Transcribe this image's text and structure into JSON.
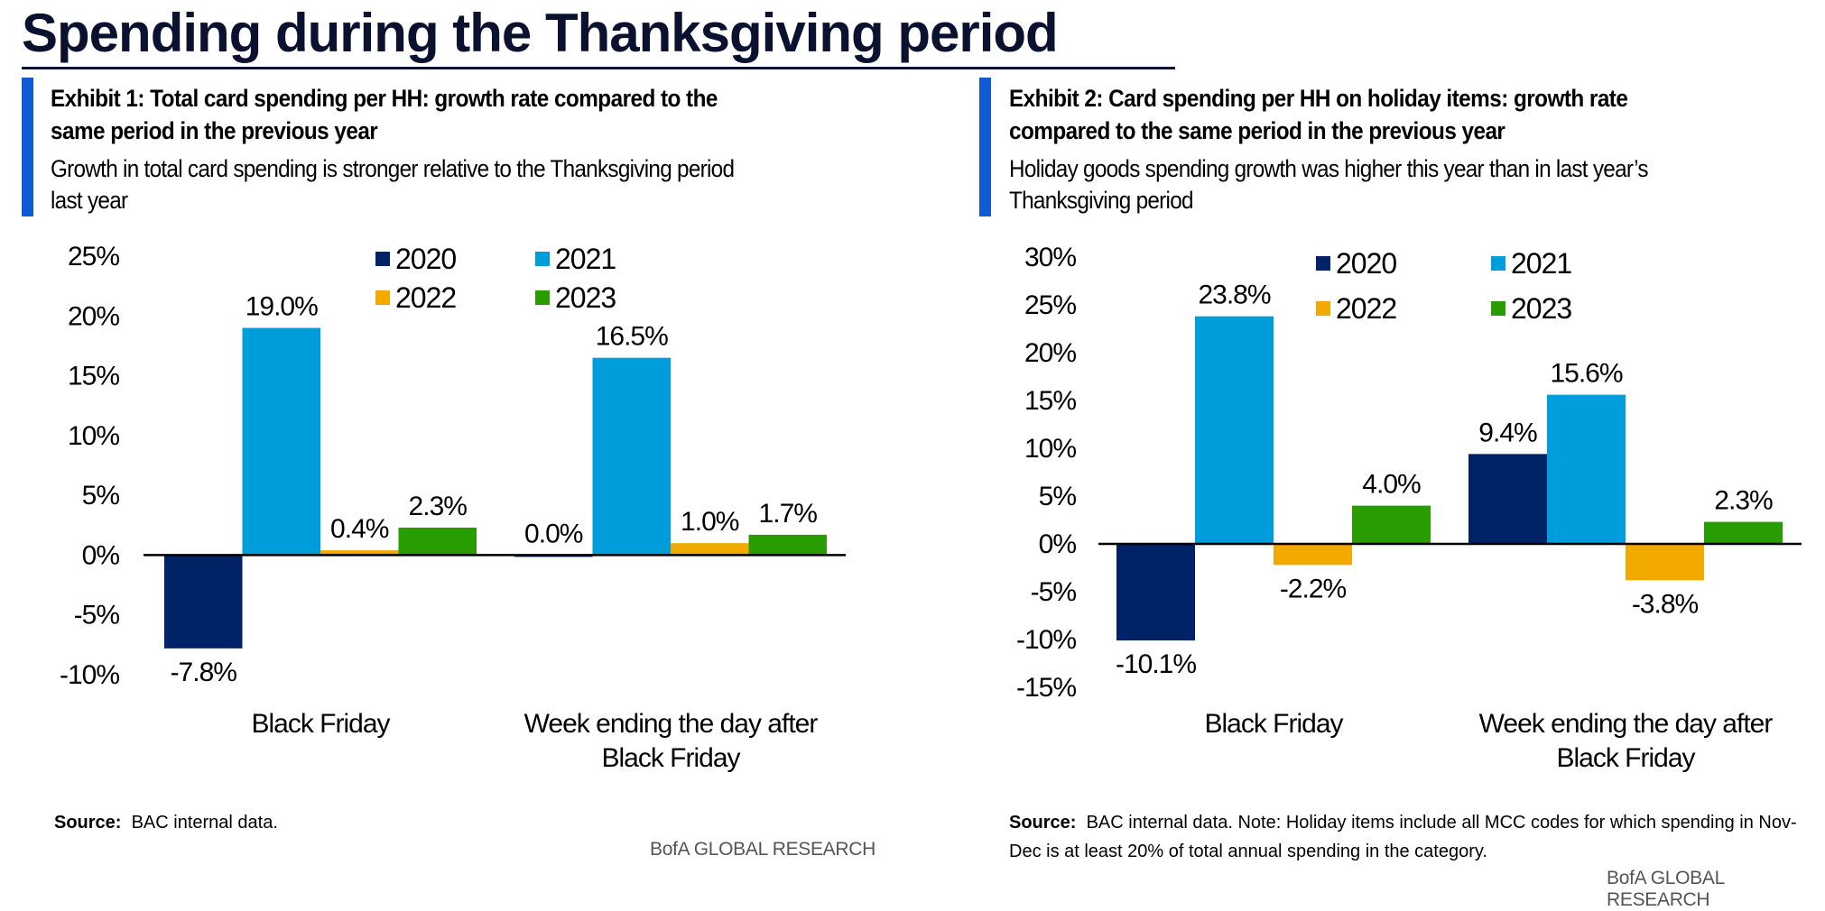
{
  "page_title": "Spending during the Thanksgiving period",
  "exhibits": [
    {
      "title_line1": "Exhibit 1: Total card spending per HH: growth rate compared to the",
      "title_line2": "same period in the previous year",
      "subtitle_line1": "Growth in total card spending is stronger relative to the Thanksgiving period",
      "subtitle_line2": "last year",
      "source_label": "Source:",
      "source_line1": "BAC internal data.",
      "source_line2": "",
      "brand": "BofA GLOBAL RESEARCH"
    },
    {
      "title_line1": "Exhibit 2: Card spending per HH on holiday items: growth rate",
      "title_line2": "compared to the same period in the previous year",
      "subtitle_line1": "Holiday goods spending growth was higher this year than in last year’s",
      "subtitle_line2": "Thanksgiving period",
      "source_label": "Source:",
      "source_line1": "BAC internal data. Note: Holiday items include all MCC codes for which spending  in Nov-",
      "source_line2": "Dec is at least 20% of total annual spending  in the category.",
      "brand": "BofA GLOBAL RESEARCH"
    }
  ],
  "colors": {
    "2020": "#002266",
    "2021": "#009ddc",
    "2022": "#f2a900",
    "2023": "#289c00"
  },
  "chart_data": [
    {
      "type": "bar",
      "title": "Exhibit 1: Total card spending per HH: growth rate compared to the same period in the previous year",
      "categories": [
        [
          "Black Friday"
        ],
        [
          "Week ending the day after",
          "Black Friday"
        ]
      ],
      "series": [
        {
          "name": "2020",
          "values": [
            -7.8,
            0.0
          ],
          "labels": [
            "-7.8%",
            "0.0%"
          ]
        },
        {
          "name": "2021",
          "values": [
            19.0,
            16.5
          ],
          "labels": [
            "19.0%",
            "16.5%"
          ]
        },
        {
          "name": "2022",
          "values": [
            0.4,
            1.0
          ],
          "labels": [
            "0.4%",
            "1.0%"
          ]
        },
        {
          "name": "2023",
          "values": [
            2.3,
            1.7
          ],
          "labels": [
            "2.3%",
            "1.7%"
          ]
        }
      ],
      "yticks": [
        -10,
        -5,
        0,
        5,
        10,
        15,
        20,
        25
      ],
      "ytick_labels": [
        "-10%",
        "-5%",
        "0%",
        "5%",
        "10%",
        "15%",
        "20%",
        "25%"
      ],
      "ylim": [
        -10,
        25
      ],
      "xlabel": "",
      "ylabel": "",
      "legend": [
        "2020",
        "2021",
        "2022",
        "2023"
      ],
      "legend_position": "top-right",
      "grid": false
    },
    {
      "type": "bar",
      "title": "Exhibit 2: Card spending per HH on holiday items: growth rate compared to the same period in the previous year",
      "categories": [
        [
          "Black Friday"
        ],
        [
          "Week ending the day after",
          "Black Friday"
        ]
      ],
      "series": [
        {
          "name": "2020",
          "values": [
            -10.1,
            9.4
          ],
          "labels": [
            "-10.1%",
            "9.4%"
          ]
        },
        {
          "name": "2021",
          "values": [
            23.8,
            15.6
          ],
          "labels": [
            "23.8%",
            "15.6%"
          ]
        },
        {
          "name": "2022",
          "values": [
            -2.2,
            -3.8
          ],
          "labels": [
            "-2.2%",
            "-3.8%"
          ]
        },
        {
          "name": "2023",
          "values": [
            4.0,
            2.3
          ],
          "labels": [
            "4.0%",
            "2.3%"
          ]
        }
      ],
      "yticks": [
        -15,
        -10,
        -5,
        0,
        5,
        10,
        15,
        20,
        25,
        30
      ],
      "ytick_labels": [
        "-15%",
        "-10%",
        "-5%",
        "0%",
        "5%",
        "10%",
        "15%",
        "20%",
        "25%",
        "30%"
      ],
      "ylim": [
        -15,
        30
      ],
      "xlabel": "",
      "ylabel": "",
      "legend": [
        "2020",
        "2021",
        "2022",
        "2023"
      ],
      "legend_position": "top-right",
      "grid": false
    }
  ]
}
